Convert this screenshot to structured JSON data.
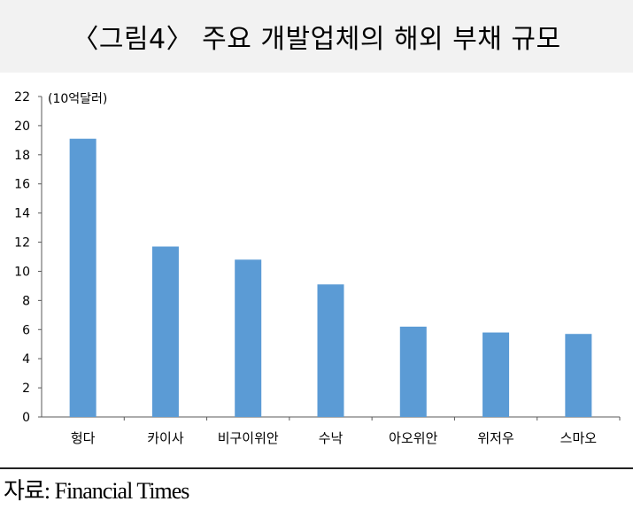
{
  "title": "〈그림4〉 주요 개발업체의 해외 부채 규모",
  "source": "자료: Financial Times",
  "chart_data": {
    "type": "bar",
    "unit_label": "(10억달러)",
    "categories": [
      "헝다",
      "카이사",
      "비구이위안",
      "수낙",
      "아오위안",
      "위저우",
      "스마오"
    ],
    "values": [
      19.1,
      11.7,
      10.8,
      9.1,
      6.2,
      5.8,
      5.7
    ],
    "ylim": [
      0,
      22
    ],
    "yticks": [
      "0",
      "2",
      "4",
      "6",
      "8",
      "10",
      "12",
      "14",
      "16",
      "18",
      "20",
      "22"
    ],
    "bar_color": "#5b9bd5",
    "grid": false
  }
}
